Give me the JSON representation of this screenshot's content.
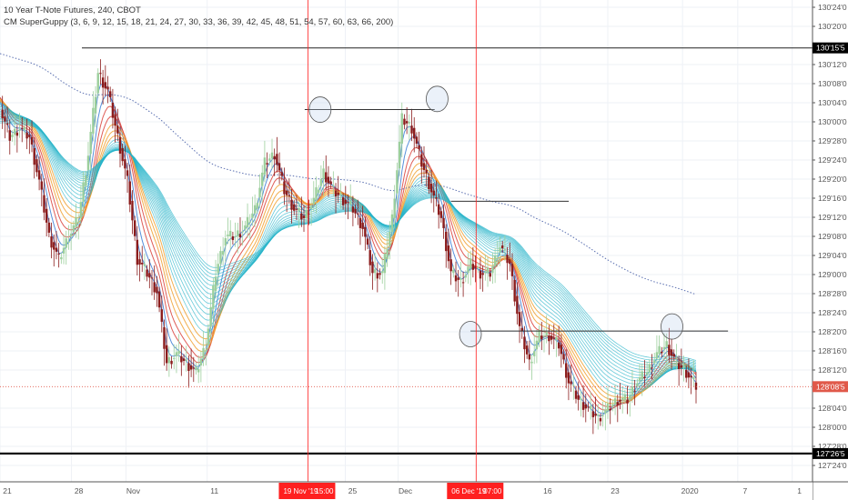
{
  "header": {
    "symbol_line": "10 Year T-Note Futures, 240, CBOT",
    "indicator_line": "CM SuperGuppy (3, 6, 9, 12, 15, 18, 21, 24, 27, 30, 33, 36, 39, 42, 45, 48, 51, 54, 57, 60, 63, 66, 200)"
  },
  "colors": {
    "up_candle": "#9ccf9c",
    "down_candle": "#8b1c1c",
    "vertical_marker": "#ff2020",
    "last_price": "#e0594a",
    "guppy_fast": [
      "#3a7bd5",
      "#d9413a",
      "#f0a030"
    ],
    "guppy_slow": "#27b3c9",
    "ema200": "#5a6fb0"
  },
  "chart_data": {
    "type": "candlestick",
    "title": "10 Year T-Note Futures, 240, CBOT",
    "price_axis_ticks": [
      "130'24'0",
      "130'20'0",
      "130'12'0",
      "130'08'0",
      "130'04'0",
      "130'00'0",
      "129'28'0",
      "129'24'0",
      "129'20'0",
      "129'16'0",
      "129'12'0",
      "129'08'0",
      "129'04'0",
      "129'00'0",
      "128'28'0",
      "128'24'0",
      "128'20'0",
      "128'16'0",
      "128'12'0",
      "128'04'0",
      "128'00'0",
      "127'28'0",
      "127'24'0"
    ],
    "price_axis_tick_values": [
      130.75,
      130.625,
      130.375,
      130.25,
      130.125,
      130.0,
      129.875,
      129.75,
      129.625,
      129.5,
      129.375,
      129.25,
      129.125,
      129.0,
      128.875,
      128.75,
      128.625,
      128.5,
      128.375,
      128.125,
      128.0,
      127.875,
      127.75
    ],
    "ylim": [
      127.72,
      130.79
    ],
    "time_axis_ticks": [
      "21",
      "28",
      "Nov",
      "11",
      "25",
      "Dec",
      "16",
      "23",
      "2020",
      "7",
      "1"
    ],
    "time_axis_positions": [
      0.0,
      0.088,
      0.155,
      0.255,
      0.425,
      0.49,
      0.665,
      0.748,
      0.84,
      0.908,
      0.975
    ],
    "closes": [
      130.08,
      129.9,
      129.96,
      129.9,
      129.61,
      129.25,
      129.1,
      129.25,
      129.37,
      129.79,
      130.32,
      130.2,
      129.9,
      129.61,
      129.1,
      129.01,
      128.89,
      128.42,
      128.48,
      128.42,
      128.36,
      128.54,
      129.01,
      129.25,
      129.25,
      129.31,
      129.43,
      129.73,
      129.79,
      129.55,
      129.43,
      129.37,
      129.49,
      129.67,
      129.55,
      129.49,
      129.43,
      129.31,
      129.01,
      129.01,
      129.37,
      130.02,
      129.96,
      129.73,
      129.55,
      129.37,
      129.01,
      128.95,
      129.07,
      129.01,
      129.01,
      129.19,
      129.07,
      128.65,
      128.42,
      128.6,
      128.6,
      128.54,
      128.3,
      128.18,
      128.12,
      128.06,
      128.12,
      128.18,
      128.18,
      128.3,
      128.36,
      128.48,
      128.54,
      128.42,
      128.36,
      128.27
    ],
    "ema200_start": 130.45,
    "horizontal_levels": [
      {
        "price": 130.484,
        "label": "130'15'5",
        "style": "line"
      },
      {
        "price": 127.828,
        "label": "127'26'5",
        "style": "bold"
      },
      {
        "price": 128.266,
        "label": "128'08'5",
        "style": "last-price"
      }
    ],
    "trend_segments": [
      {
        "price": 130.08,
        "from": 0.375,
        "to": 0.535
      },
      {
        "price": 129.48,
        "from": 0.555,
        "to": 0.7
      },
      {
        "price": 128.63,
        "from": 0.579,
        "to": 0.896
      }
    ],
    "circled_points": [
      {
        "pos": 0.394,
        "price": 130.08
      },
      {
        "pos": 0.538,
        "price": 130.15
      },
      {
        "pos": 0.579,
        "price": 128.61
      },
      {
        "pos": 0.827,
        "price": 128.66
      }
    ],
    "vertical_markers": [
      {
        "pos": 0.379,
        "label_date": "19 Nov '19",
        "label_time": "15:00"
      },
      {
        "pos": 0.586,
        "label_date": "06 Dec '19",
        "label_time": "07:00"
      }
    ]
  }
}
